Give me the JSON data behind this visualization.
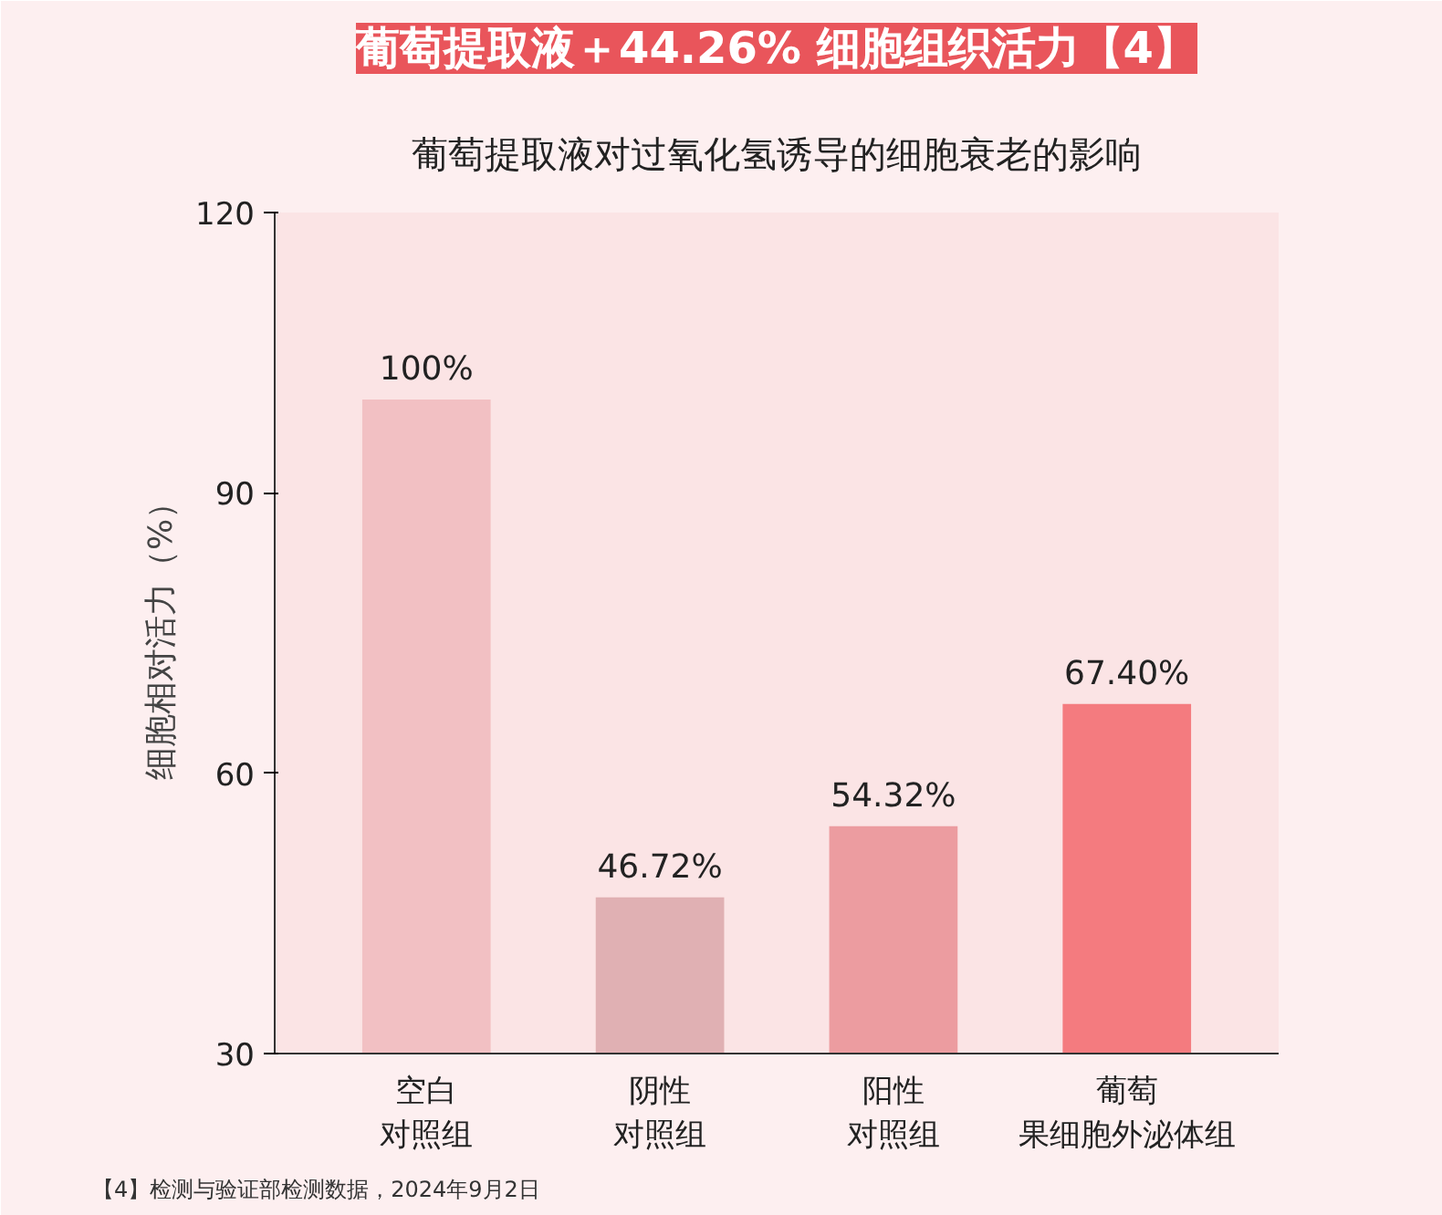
{
  "chart_data": {
    "type": "bar",
    "title": "葡萄提取液＋44.26% 细胞组织活力【4】",
    "subtitle": "葡萄提取液对过氧化氢诱导的细胞衰老的影响",
    "ylabel": "细胞相对活力（%）",
    "categories": [
      "空白对照组",
      "阴性对照组",
      "阳性对照组",
      "葡萄果细胞外泌体组"
    ],
    "values": [
      100,
      46.72,
      54.32,
      67.4
    ],
    "colors": [
      "#f2c0c3",
      "#e0b0b3",
      "#ec9ca0",
      "#f47b7f"
    ],
    "value_labels": [
      "100%",
      "46.72%",
      "54.32%",
      "67.40%"
    ],
    "ylim": [
      30,
      120
    ],
    "yticks": [
      30,
      60,
      90,
      120
    ],
    "grid": false,
    "annotations": [
      "【4】检测与验证部检测数据，2024年9月2日"
    ]
  }
}
